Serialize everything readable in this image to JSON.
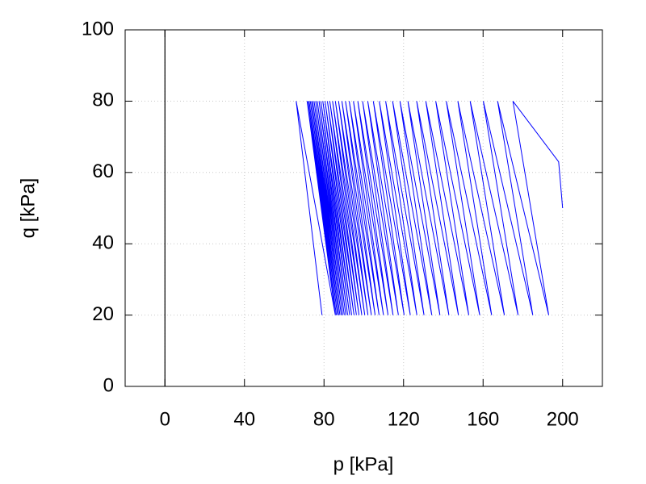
{
  "chart_data": {
    "type": "line",
    "xlabel": "p [kPa]",
    "ylabel": "q [kPa]",
    "x": [
      200,
      198,
      175,
      193,
      167.3,
      185,
      160.1,
      177.6,
      153.5,
      170.7,
      147.3,
      164.3,
      141.5,
      158.3,
      136.2,
      152.8,
      131.2,
      147.6,
      126.6,
      142.8,
      122.2,
      138.3,
      118.2,
      134.2,
      114.5,
      130.3,
      111,
      126.7,
      107.8,
      123.4,
      104.8,
      120.3,
      102,
      117.4,
      99.4,
      114.7,
      97,
      112.2,
      94.8,
      109.9,
      92.7,
      107.7,
      90.8,
      105.7,
      89,
      103.8,
      87.3,
      102.1,
      85.7,
      100.5,
      84.3,
      99,
      82.9,
      97.6,
      81.7,
      96.3,
      80.5,
      95.1,
      79.4,
      93.9,
      78.4,
      92.9,
      77.5,
      91.9,
      76.6,
      91,
      75.8,
      90.2,
      75,
      89.4,
      74.3,
      88.7,
      73.7,
      88,
      73.1,
      87.4,
      72.5,
      86.8,
      72,
      86.2,
      71.5,
      85.7,
      66,
      79
    ],
    "values": [
      50,
      63,
      80,
      20,
      80,
      20,
      80,
      20,
      80,
      20,
      80,
      20,
      80,
      20,
      80,
      20,
      80,
      20,
      80,
      20,
      80,
      20,
      80,
      20,
      80,
      20,
      80,
      20,
      80,
      20,
      80,
      20,
      80,
      20,
      80,
      20,
      80,
      20,
      80,
      20,
      80,
      20,
      80,
      20,
      80,
      20,
      80,
      20,
      80,
      20,
      80,
      20,
      80,
      20,
      80,
      20,
      80,
      20,
      80,
      20,
      80,
      20,
      80,
      20,
      80,
      20,
      80,
      20,
      80,
      20,
      80,
      20,
      80,
      20,
      80,
      20,
      80,
      20,
      80,
      20,
      80,
      20,
      80,
      20
    ],
    "color": "#0000ff",
    "xlim": [
      -20,
      220
    ],
    "ylim": [
      0,
      100
    ],
    "xticks": [
      0,
      40,
      80,
      120,
      160,
      200
    ],
    "yticks": [
      0,
      20,
      40,
      60,
      80,
      100
    ],
    "grid": true,
    "zeroaxis": true
  }
}
